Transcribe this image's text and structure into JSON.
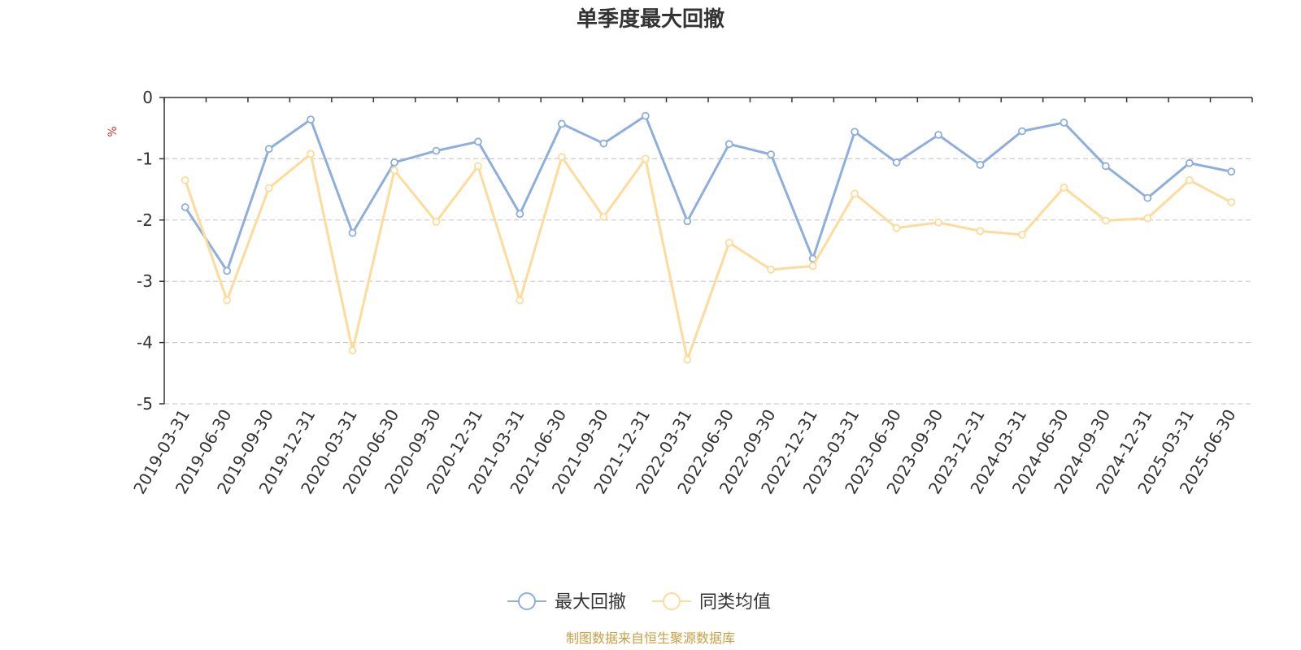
{
  "chart_data": {
    "type": "line",
    "title": "单季度最大回撤",
    "ylabel": "%",
    "ylim": [
      -5,
      0
    ],
    "yticks": [
      0,
      -1,
      -2,
      -3,
      -4,
      -5
    ],
    "grid": true,
    "legend_position": "bottom-center",
    "categories": [
      "2019-03-31",
      "2019-06-30",
      "2019-09-30",
      "2019-12-31",
      "2020-03-31",
      "2020-06-30",
      "2020-09-30",
      "2020-12-31",
      "2021-03-31",
      "2021-06-30",
      "2021-09-30",
      "2021-12-31",
      "2022-03-31",
      "2022-06-30",
      "2022-09-30",
      "2022-12-31",
      "2023-03-31",
      "2023-06-30",
      "2023-09-30",
      "2023-12-31",
      "2024-03-31",
      "2024-06-30",
      "2024-09-30",
      "2024-12-31",
      "2025-03-31",
      "2025-06-30"
    ],
    "series": [
      {
        "name": "最大回撤",
        "color": "#8eaedc",
        "values": [
          -1.79,
          -2.83,
          -0.84,
          -0.36,
          -2.21,
          -1.06,
          -0.87,
          -0.72,
          -1.9,
          -0.43,
          -0.75,
          -0.3,
          -2.02,
          -0.76,
          -0.93,
          -2.63,
          -0.56,
          -1.06,
          -0.61,
          -1.1,
          -0.55,
          -0.41,
          -1.12,
          -1.64,
          -1.07,
          -1.21
        ]
      },
      {
        "name": "同类均值",
        "color": "#fddb9a",
        "values": [
          -1.35,
          -3.31,
          -1.48,
          -0.92,
          -4.13,
          -1.19,
          -2.03,
          -1.12,
          -3.31,
          -0.97,
          -1.95,
          -1.0,
          -4.28,
          -2.37,
          -2.81,
          -2.75,
          -1.57,
          -2.13,
          -2.04,
          -2.18,
          -2.24,
          -1.47,
          -2.01,
          -1.97,
          -1.35,
          -1.71
        ]
      }
    ]
  },
  "source_text": "制图数据来自恒生聚源数据库",
  "colors": {
    "axis": "#333333",
    "grid": "#cccccc",
    "unit": "#e0312b",
    "source": "#c8a046"
  }
}
